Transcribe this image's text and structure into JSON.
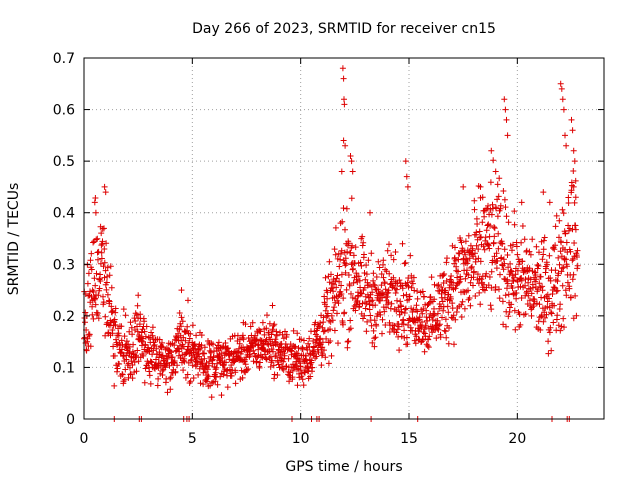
{
  "chart_data": {
    "type": "scatter",
    "title": "Day 266 of 2023, SRMTID for receiver cn15",
    "xlabel": "GPS time / hours",
    "ylabel": "SRMTID / TECUs",
    "xlim": [
      0,
      24
    ],
    "ylim": [
      0,
      0.7
    ],
    "xticks": [
      0,
      5,
      10,
      15,
      20
    ],
    "xtick_labels": [
      "0",
      "5",
      "10",
      "15",
      "20"
    ],
    "yticks": [
      0,
      0.1,
      0.2,
      0.3,
      0.4,
      0.5,
      0.6,
      0.7
    ],
    "ytick_labels": [
      "0",
      "0.1",
      "0.2",
      "0.3",
      "0.4",
      "0.5",
      "0.6",
      "0.7"
    ],
    "grid": true,
    "marker": "+",
    "color": "#dd0000",
    "zero_points_x": [
      1.4,
      2.55,
      2.65,
      4.6,
      4.75,
      4.85,
      9.6,
      10.5,
      10.75,
      10.85,
      13.25,
      15.4,
      21.6,
      22.3,
      22.4
    ],
    "envelope": {
      "x": [
        0.0,
        0.3,
        0.6,
        0.9,
        1.2,
        1.5,
        2.0,
        2.5,
        3.0,
        3.5,
        4.0,
        4.5,
        5.0,
        5.5,
        6.0,
        6.5,
        7.0,
        7.5,
        8.0,
        8.5,
        9.0,
        9.5,
        10.0,
        10.5,
        11.0,
        11.5,
        12.0,
        12.5,
        13.0,
        13.5,
        14.0,
        14.5,
        15.0,
        15.5,
        16.0,
        16.5,
        17.0,
        17.5,
        18.0,
        18.5,
        19.0,
        19.5,
        20.0,
        20.5,
        21.0,
        21.5,
        22.0,
        22.5,
        22.8
      ],
      "mean": [
        0.2,
        0.25,
        0.28,
        0.3,
        0.2,
        0.14,
        0.12,
        0.16,
        0.13,
        0.11,
        0.12,
        0.15,
        0.13,
        0.11,
        0.1,
        0.11,
        0.12,
        0.13,
        0.14,
        0.15,
        0.13,
        0.12,
        0.11,
        0.13,
        0.17,
        0.22,
        0.3,
        0.28,
        0.24,
        0.23,
        0.24,
        0.25,
        0.22,
        0.2,
        0.19,
        0.22,
        0.26,
        0.28,
        0.3,
        0.32,
        0.34,
        0.3,
        0.27,
        0.26,
        0.25,
        0.24,
        0.3,
        0.36,
        0.3
      ],
      "spread": [
        0.06,
        0.08,
        0.08,
        0.07,
        0.05,
        0.04,
        0.04,
        0.04,
        0.035,
        0.03,
        0.03,
        0.04,
        0.03,
        0.03,
        0.03,
        0.03,
        0.03,
        0.03,
        0.03,
        0.03,
        0.03,
        0.03,
        0.03,
        0.03,
        0.04,
        0.06,
        0.09,
        0.07,
        0.05,
        0.05,
        0.05,
        0.06,
        0.05,
        0.04,
        0.04,
        0.05,
        0.06,
        0.06,
        0.07,
        0.08,
        0.08,
        0.07,
        0.06,
        0.06,
        0.06,
        0.06,
        0.08,
        0.09,
        0.06
      ]
    },
    "outliers": [
      {
        "x": 0.5,
        "y": 0.42
      },
      {
        "x": 0.55,
        "y": 0.4
      },
      {
        "x": 0.95,
        "y": 0.45
      },
      {
        "x": 1.0,
        "y": 0.44
      },
      {
        "x": 2.5,
        "y": 0.24
      },
      {
        "x": 4.5,
        "y": 0.25
      },
      {
        "x": 4.8,
        "y": 0.23
      },
      {
        "x": 8.7,
        "y": 0.22
      },
      {
        "x": 11.95,
        "y": 0.68
      },
      {
        "x": 11.98,
        "y": 0.66
      },
      {
        "x": 12.0,
        "y": 0.62
      },
      {
        "x": 12.02,
        "y": 0.61
      },
      {
        "x": 11.98,
        "y": 0.54
      },
      {
        "x": 12.05,
        "y": 0.53
      },
      {
        "x": 12.3,
        "y": 0.51
      },
      {
        "x": 12.35,
        "y": 0.5
      },
      {
        "x": 12.4,
        "y": 0.48
      },
      {
        "x": 11.9,
        "y": 0.48
      },
      {
        "x": 14.85,
        "y": 0.5
      },
      {
        "x": 14.9,
        "y": 0.47
      },
      {
        "x": 14.95,
        "y": 0.45
      },
      {
        "x": 13.2,
        "y": 0.4
      },
      {
        "x": 17.5,
        "y": 0.45
      },
      {
        "x": 18.3,
        "y": 0.45
      },
      {
        "x": 18.4,
        "y": 0.43
      },
      {
        "x": 18.8,
        "y": 0.52
      },
      {
        "x": 19.0,
        "y": 0.48
      },
      {
        "x": 19.4,
        "y": 0.62
      },
      {
        "x": 19.45,
        "y": 0.6
      },
      {
        "x": 19.5,
        "y": 0.58
      },
      {
        "x": 19.55,
        "y": 0.55
      },
      {
        "x": 20.2,
        "y": 0.42
      },
      {
        "x": 21.2,
        "y": 0.44
      },
      {
        "x": 21.5,
        "y": 0.42
      },
      {
        "x": 22.0,
        "y": 0.65
      },
      {
        "x": 22.05,
        "y": 0.64
      },
      {
        "x": 22.1,
        "y": 0.62
      },
      {
        "x": 22.15,
        "y": 0.6
      },
      {
        "x": 22.2,
        "y": 0.55
      },
      {
        "x": 22.25,
        "y": 0.53
      },
      {
        "x": 22.5,
        "y": 0.58
      },
      {
        "x": 22.55,
        "y": 0.56
      },
      {
        "x": 22.6,
        "y": 0.52
      },
      {
        "x": 22.65,
        "y": 0.5
      },
      {
        "x": 22.6,
        "y": 0.45
      },
      {
        "x": 22.7,
        "y": 0.43
      }
    ]
  }
}
